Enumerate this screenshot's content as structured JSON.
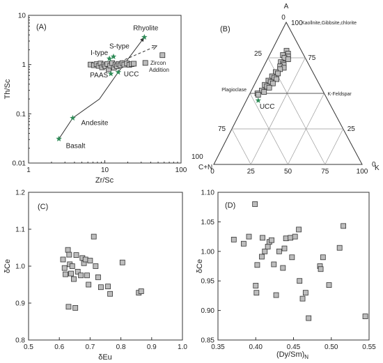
{
  "chart_data": [
    {
      "panel": "(A)",
      "type": "scatter",
      "xlabel": "Zr/Sc",
      "ylabel": "Th/Sc",
      "x_scale": "log",
      "y_scale": "log",
      "xlim": [
        1,
        100
      ],
      "ylim": [
        0.01,
        10
      ],
      "x_ticks": [
        "1",
        "10",
        "100"
      ],
      "y_ticks": [
        "0.01",
        "0.1",
        "1",
        "10"
      ],
      "reference_points": [
        {
          "label": "Basalt",
          "x": 2.5,
          "y": 0.031
        },
        {
          "label": "Andesite",
          "x": 3.8,
          "y": 0.082
        },
        {
          "label": "UCC",
          "x": 15,
          "y": 0.7
        },
        {
          "label": "PAAS",
          "x": 12,
          "y": 0.65
        },
        {
          "label": "I-type",
          "x": 11.5,
          "y": 1.32
        },
        {
          "label": "S-type",
          "x": 13,
          "y": 1.45
        },
        {
          "label": "Rhyolite",
          "x": 33,
          "y": 3.6
        }
      ],
      "trend_line": [
        [
          2.5,
          0.031
        ],
        [
          3.8,
          0.082
        ],
        [
          8.5,
          0.2
        ],
        [
          15,
          0.7
        ],
        [
          33,
          3.6
        ]
      ],
      "zircon_arrow": {
        "label": "Zircon Addition",
        "from": [
          16,
          1.15
        ],
        "to": [
          48,
          2.4
        ]
      },
      "samples": [
        {
          "x": 6.5,
          "y": 1.0
        },
        {
          "x": 7.2,
          "y": 0.97
        },
        {
          "x": 7.8,
          "y": 1.02
        },
        {
          "x": 8.3,
          "y": 0.94
        },
        {
          "x": 8.8,
          "y": 1.05
        },
        {
          "x": 9.2,
          "y": 0.88
        },
        {
          "x": 9.8,
          "y": 1.0
        },
        {
          "x": 10.2,
          "y": 0.92
        },
        {
          "x": 10.8,
          "y": 1.03
        },
        {
          "x": 11.2,
          "y": 0.8
        },
        {
          "x": 11.8,
          "y": 0.95
        },
        {
          "x": 12.5,
          "y": 1.07
        },
        {
          "x": 13.2,
          "y": 0.86
        },
        {
          "x": 13.8,
          "y": 1.0
        },
        {
          "x": 14.5,
          "y": 0.93
        },
        {
          "x": 15.2,
          "y": 1.03
        },
        {
          "x": 16,
          "y": 0.97
        },
        {
          "x": 17,
          "y": 1.07
        },
        {
          "x": 18,
          "y": 1.0
        },
        {
          "x": 19.5,
          "y": 1.06
        },
        {
          "x": 21,
          "y": 0.99
        },
        {
          "x": 22.5,
          "y": 1.02
        },
        {
          "x": 24,
          "y": 1.04
        },
        {
          "x": 34,
          "y": 1.08
        },
        {
          "x": 57,
          "y": 1.55
        }
      ]
    },
    {
      "panel": "(B)",
      "type": "scatter",
      "subtype": "ternary",
      "apex_top": "A",
      "apex_left": "C+N",
      "apex_right": "K",
      "top_label": "Kaollnite,Gibbsite,chlorite",
      "ticks": [
        "0",
        "25",
        "50",
        "75",
        "100"
      ],
      "reference_lines": [
        {
          "label": "Plagioclase",
          "a": 50,
          "c": 50,
          "k": 0
        },
        {
          "label": "K-Feldspar",
          "a": 50,
          "c": 0,
          "k": 50
        }
      ],
      "reference_points": [
        {
          "label": "UCC",
          "a": 45,
          "c": 47,
          "k": 8
        }
      ],
      "samples": [
        {
          "a": 80,
          "k": 10
        },
        {
          "a": 78,
          "k": 12
        },
        {
          "a": 77,
          "k": 9
        },
        {
          "a": 76,
          "k": 13
        },
        {
          "a": 75,
          "k": 11
        },
        {
          "a": 74,
          "k": 14
        },
        {
          "a": 72,
          "k": 10
        },
        {
          "a": 71,
          "k": 12
        },
        {
          "a": 70,
          "k": 13
        },
        {
          "a": 69,
          "k": 11
        },
        {
          "a": 68,
          "k": 14
        },
        {
          "a": 67,
          "k": 12
        },
        {
          "a": 65,
          "k": 10
        },
        {
          "a": 64,
          "k": 12
        },
        {
          "a": 62,
          "k": 9
        },
        {
          "a": 61,
          "k": 11
        },
        {
          "a": 60,
          "k": 13
        },
        {
          "a": 59,
          "k": 8
        },
        {
          "a": 58,
          "k": 10
        },
        {
          "a": 57,
          "k": 12
        },
        {
          "a": 56,
          "k": 7
        },
        {
          "a": 55,
          "k": 9
        },
        {
          "a": 54,
          "k": 11
        },
        {
          "a": 52,
          "k": 7
        },
        {
          "a": 51,
          "k": 9
        },
        {
          "a": 50,
          "k": 5
        },
        {
          "a": 49,
          "k": 6
        }
      ]
    },
    {
      "panel": "(C)",
      "type": "scatter",
      "xlabel": "δEu",
      "ylabel": "δCe",
      "xlim": [
        0.5,
        1.0
      ],
      "ylim": [
        0.8,
        1.2
      ],
      "x_ticks": [
        "0.5",
        "0.6",
        "0.7",
        "0.8",
        "0.9",
        "1.0"
      ],
      "y_ticks": [
        "0.8",
        "0.9",
        "1.0",
        "1.1",
        "1.2"
      ],
      "samples": [
        {
          "x": 0.612,
          "y": 1.018
        },
        {
          "x": 0.617,
          "y": 0.995
        },
        {
          "x": 0.62,
          "y": 0.978
        },
        {
          "x": 0.628,
          "y": 1.044
        },
        {
          "x": 0.632,
          "y": 1.031
        },
        {
          "x": 0.634,
          "y": 1.005
        },
        {
          "x": 0.638,
          "y": 0.98
        },
        {
          "x": 0.642,
          "y": 1.0
        },
        {
          "x": 0.647,
          "y": 0.965
        },
        {
          "x": 0.655,
          "y": 1.03
        },
        {
          "x": 0.66,
          "y": 0.985
        },
        {
          "x": 0.67,
          "y": 0.975
        },
        {
          "x": 0.675,
          "y": 1.022
        },
        {
          "x": 0.68,
          "y": 1.008
        },
        {
          "x": 0.685,
          "y": 1.018
        },
        {
          "x": 0.69,
          "y": 0.975
        },
        {
          "x": 0.695,
          "y": 0.95
        },
        {
          "x": 0.7,
          "y": 1.015
        },
        {
          "x": 0.712,
          "y": 1.08
        },
        {
          "x": 0.718,
          "y": 1.0
        },
        {
          "x": 0.726,
          "y": 0.97
        },
        {
          "x": 0.735,
          "y": 0.943
        },
        {
          "x": 0.758,
          "y": 0.945
        },
        {
          "x": 0.765,
          "y": 0.925
        },
        {
          "x": 0.63,
          "y": 0.89
        },
        {
          "x": 0.652,
          "y": 0.887
        },
        {
          "x": 0.805,
          "y": 1.01
        },
        {
          "x": 0.858,
          "y": 0.928
        },
        {
          "x": 0.866,
          "y": 0.932
        }
      ]
    },
    {
      "panel": "(D)",
      "type": "scatter",
      "xlabel": "(Dy/Sm)",
      "xlabel_sub": "N",
      "ylabel": "δCe",
      "xlim": [
        0.35,
        0.55
      ],
      "ylim": [
        0.85,
        1.1
      ],
      "x_ticks": [
        "0.35",
        "0.40",
        "0.45",
        "0.50",
        "0.55"
      ],
      "y_ticks": [
        "0.85",
        "0.90",
        "0.95",
        "1.00",
        "1.05",
        "1.10"
      ],
      "samples": [
        {
          "x": 0.371,
          "y": 1.02
        },
        {
          "x": 0.384,
          "y": 1.013
        },
        {
          "x": 0.391,
          "y": 1.025
        },
        {
          "x": 0.399,
          "y": 1.08
        },
        {
          "x": 0.4,
          "y": 0.942
        },
        {
          "x": 0.401,
          "y": 0.93
        },
        {
          "x": 0.402,
          "y": 0.977
        },
        {
          "x": 0.408,
          "y": 0.991
        },
        {
          "x": 0.409,
          "y": 1.023
        },
        {
          "x": 0.412,
          "y": 1.0
        },
        {
          "x": 0.416,
          "y": 1.008
        },
        {
          "x": 0.418,
          "y": 1.016
        },
        {
          "x": 0.421,
          "y": 1.019
        },
        {
          "x": 0.424,
          "y": 0.978
        },
        {
          "x": 0.427,
          "y": 0.926
        },
        {
          "x": 0.431,
          "y": 1.0
        },
        {
          "x": 0.436,
          "y": 0.972
        },
        {
          "x": 0.438,
          "y": 1.005
        },
        {
          "x": 0.44,
          "y": 1.022
        },
        {
          "x": 0.446,
          "y": 1.023
        },
        {
          "x": 0.448,
          "y": 0.99
        },
        {
          "x": 0.452,
          "y": 1.025
        },
        {
          "x": 0.457,
          "y": 1.037
        },
        {
          "x": 0.458,
          "y": 0.95
        },
        {
          "x": 0.462,
          "y": 0.92
        },
        {
          "x": 0.466,
          "y": 0.93
        },
        {
          "x": 0.47,
          "y": 0.887
        },
        {
          "x": 0.485,
          "y": 0.975
        },
        {
          "x": 0.486,
          "y": 0.97
        },
        {
          "x": 0.489,
          "y": 0.99
        },
        {
          "x": 0.497,
          "y": 0.943
        },
        {
          "x": 0.511,
          "y": 1.006
        },
        {
          "x": 0.516,
          "y": 1.043
        },
        {
          "x": 0.545,
          "y": 0.89
        }
      ]
    }
  ]
}
